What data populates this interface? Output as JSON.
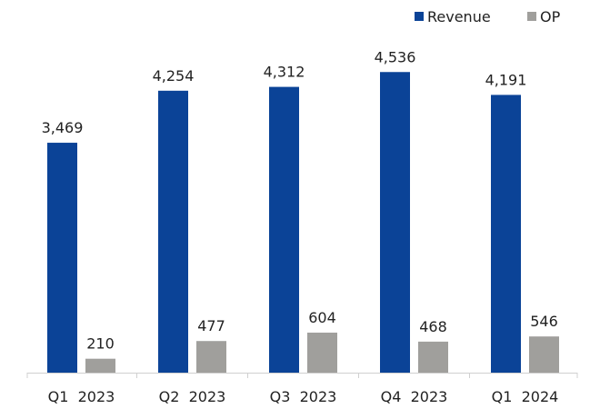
{
  "chart_data": {
    "type": "bar",
    "title": "",
    "xlabel": "",
    "ylabel": "",
    "categories": [
      "Q1  2023",
      "Q2  2023",
      "Q3  2023",
      "Q4  2023",
      "Q1  2024"
    ],
    "series": [
      {
        "name": "Revenue",
        "color": "#0b4397",
        "values": [
          3469,
          4254,
          4312,
          4536,
          4191
        ],
        "labels": [
          "3,469",
          "4,254",
          "4,312",
          "4,536",
          "4,191"
        ]
      },
      {
        "name": "OP",
        "color": "#a09f9c",
        "values": [
          210,
          477,
          604,
          468,
          546
        ],
        "labels": [
          "210",
          "477",
          "604",
          "468",
          "546"
        ]
      }
    ],
    "ylim": [
      0,
      4800
    ],
    "grid": false,
    "y_axis_visible": false,
    "legend_position": "top-right",
    "axis_color": "#d0d0d0"
  }
}
